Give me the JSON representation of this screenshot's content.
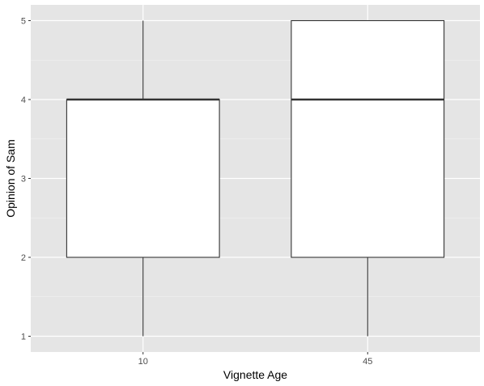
{
  "chart_data": {
    "type": "boxplot",
    "title": "",
    "xlabel": "Vignette Age",
    "ylabel": "Opinion of Sam",
    "categories": [
      "10",
      "45"
    ],
    "boxes": [
      {
        "category": "10",
        "min": 1,
        "q1": 2,
        "median": 4,
        "q3": 4,
        "max": 5
      },
      {
        "category": "45",
        "min": 1,
        "q1": 2,
        "median": 4,
        "q3": 5,
        "max": 5
      }
    ],
    "yticks": [
      1,
      2,
      3,
      4,
      5
    ],
    "ylim": [
      0.8,
      5.2
    ],
    "grid": true,
    "legend": "none",
    "colors": {
      "panel_background": "#e5e5e5",
      "grid_major": "#ffffff",
      "grid_minor": "#f2f2f2",
      "box_fill": "#ffffff",
      "box_stroke": "#333333",
      "tick_mark": "#333333"
    }
  }
}
